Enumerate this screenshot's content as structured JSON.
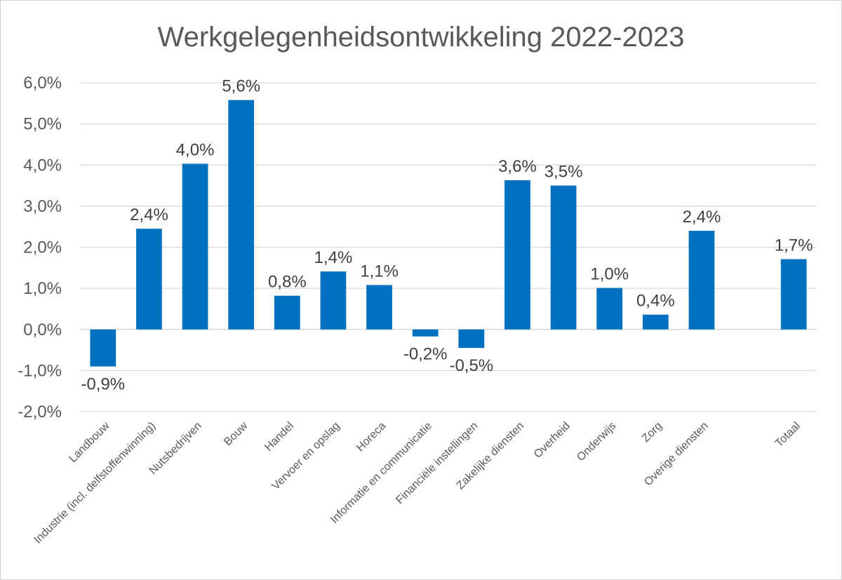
{
  "chart_data": {
    "type": "bar",
    "title": "Werkgelegenheidsontwikkeling 2022-2023",
    "xlabel": "",
    "ylabel": "",
    "ylim": [
      -2.0,
      6.0
    ],
    "yticks": [
      -2.0,
      -1.0,
      0.0,
      1.0,
      2.0,
      3.0,
      4.0,
      5.0,
      6.0
    ],
    "ytick_labels": [
      "-2,0%",
      "-1,0%",
      "0,0%",
      "1,0%",
      "2,0%",
      "3,0%",
      "4,0%",
      "5,0%",
      "6,0%"
    ],
    "grid": true,
    "legend": "none",
    "bar_color": "#0070C0",
    "categories": [
      "Landbouw",
      "Industrie (incl. delfstoffenwinning)",
      "Nutsbedrijven",
      "Bouw",
      "Handel",
      "Vervoer en opslag",
      "Horeca",
      "Informatie en communicatie",
      "Financiële instellingen",
      "Zakelijke diensten",
      "Overheid",
      "Onderwijs",
      "Zorg",
      "Overige diensten",
      "",
      "Totaal"
    ],
    "values": [
      -0.9,
      2.45,
      4.03,
      5.58,
      0.82,
      1.41,
      1.08,
      -0.17,
      -0.45,
      3.63,
      3.5,
      1.01,
      0.36,
      2.4,
      null,
      1.71
    ],
    "data_labels": [
      "-0,9%",
      "2,4%",
      "4,0%",
      "5,6%",
      "0,8%",
      "1,4%",
      "1,1%",
      "-0,2%",
      "-0,5%",
      "3,6%",
      "3,5%",
      "1,0%",
      "0,4%",
      "2,4%",
      "",
      "1,7%"
    ]
  }
}
